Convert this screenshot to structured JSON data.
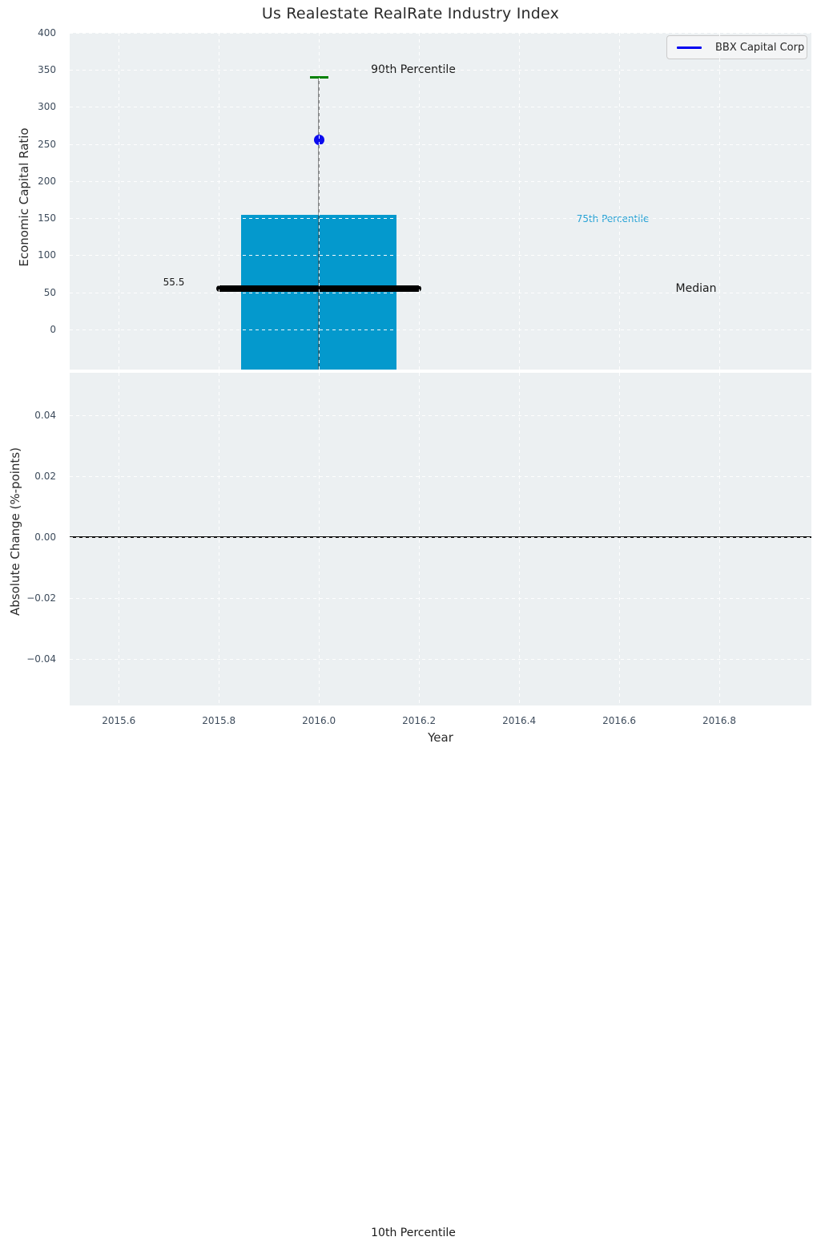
{
  "title": "Us Realestate RealRate Industry Index",
  "legend": {
    "label": "BBX Capital Corp"
  },
  "x_axis": {
    "label": "Year",
    "tick_labels": [
      "2015.6",
      "2015.8",
      "2016.0",
      "2016.2",
      "2016.4",
      "2016.6",
      "2016.8"
    ],
    "tick_values": [
      2015.6,
      2015.8,
      2016.0,
      2016.2,
      2016.4,
      2016.6,
      2016.8
    ],
    "xlim": [
      2015.502,
      2016.984
    ]
  },
  "top_axis": {
    "ylabel": "Economic Capital Ratio",
    "tick_labels": [
      "0",
      "50",
      "100",
      "150",
      "200",
      "250",
      "300",
      "350",
      "400"
    ],
    "tick_values": [
      0,
      50,
      100,
      150,
      200,
      250,
      300,
      350,
      400
    ],
    "ylim": [
      -54.1,
      400
    ]
  },
  "bottom_axis": {
    "ylabel": "Absolute Change (%-points)",
    "tick_labels": [
      "−0.04",
      "−0.02",
      "0.00",
      "0.02",
      "0.04"
    ],
    "tick_values": [
      -0.04,
      -0.02,
      0.0,
      0.02,
      0.04
    ],
    "ylim": [
      -0.0551,
      0.0538
    ],
    "zero_line": 0.0
  },
  "annotations": {
    "p90": "90th Percentile",
    "p75": "75th Percentile",
    "median": "Median",
    "median_value": "55.5",
    "p10": "10th Percentile"
  },
  "colors": {
    "axes_bg": "#ecf0f2",
    "grid": "#ffffff",
    "bar": "#0499cd",
    "whisker": "rgba(60,60,60,0.55)",
    "whisker_cap": "#008000",
    "point": "#0b0bee",
    "legend_line": "#0000f0",
    "median_line": "#000000",
    "p75_text": "#29a3d6",
    "tick_text": "#3e4c5c",
    "zero_line": "#111111"
  },
  "chart_data": {
    "type": "box-whisker-with-company-point",
    "title": "Us Realestate RealRate Industry Index",
    "company": "BBX Capital Corp",
    "x": 2016.0,
    "values": {
      "median": 55.5,
      "p75": 155,
      "p90": 340,
      "company_point": 256
    },
    "p10_below_axis": true,
    "bar_x_range": [
      2015.845,
      2016.155
    ],
    "median_line_x_range": [
      2015.8,
      2016.2
    ],
    "cap_half_width_years": 0.0185,
    "top_panel": {
      "ylabel": "Economic Capital Ratio",
      "ylim": [
        -54.1,
        400
      ],
      "grid": "white dashed"
    },
    "bottom_panel": {
      "ylabel": "Absolute Change (%-points)",
      "ylim": [
        -0.0551,
        0.0538
      ],
      "series": [],
      "zero_line": 0.0
    },
    "legend_position": "upper right"
  }
}
